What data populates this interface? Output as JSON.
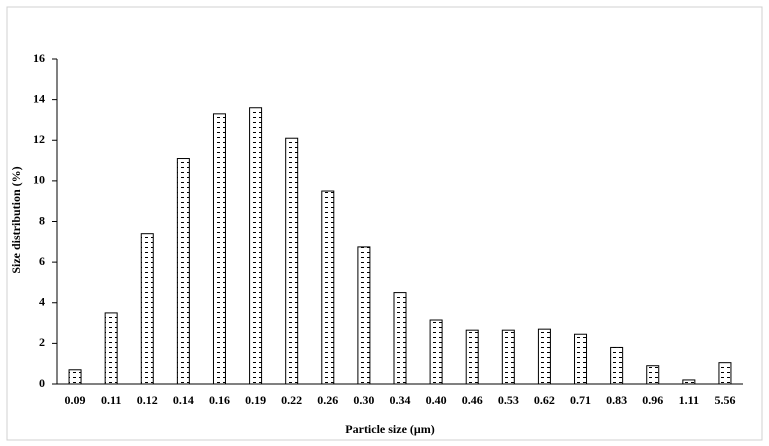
{
  "chart_data": {
    "type": "bar",
    "x_label": "Particle size (μm)",
    "y_label": "Size distribution  (%)",
    "categories": [
      "0.09",
      "0.11",
      "0.12",
      "0.14",
      "0.16",
      "0.19",
      "0.22",
      "0.26",
      "0.30",
      "0.34",
      "0.40",
      "0.46",
      "0.53",
      "0.62",
      "0.71",
      "0.83",
      "0.96",
      "1.11",
      "5.56"
    ],
    "values": [
      0.7,
      3.5,
      7.4,
      11.1,
      13.3,
      13.6,
      12.1,
      9.5,
      6.75,
      4.5,
      3.15,
      2.65,
      2.65,
      2.7,
      2.45,
      1.8,
      0.9,
      0.2,
      1.05
    ],
    "color": "#000000",
    "ylim": [
      0,
      16
    ],
    "yticks": [
      0,
      2,
      4,
      6,
      8,
      10,
      12,
      14,
      16
    ],
    "grid": false
  }
}
